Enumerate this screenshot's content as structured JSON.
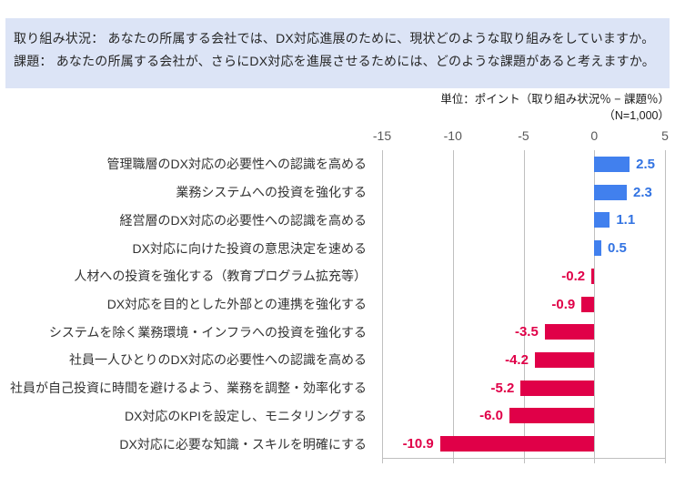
{
  "header": {
    "line1": "取り組み状況： あなたの所属する会社では、DX対応進展のために、現状どのような取り組みをしていますか。",
    "line2": "課題： あなたの所属する会社が、さらにDX対応を進展させるためには、どのような課題があると考えますか。"
  },
  "chart_data": {
    "type": "bar",
    "orientation": "horizontal",
    "title": "",
    "unit_label": "単位：ポイント（取り組み状況％ − 課題％）",
    "n_label": "（N=1,000）",
    "categories": [
      "管理職層のDX対応の必要性への認識を高める",
      "業務システムへの投資を強化する",
      "経営層のDX対応の必要性への認識を高める",
      "DX対応に向けた投資の意思決定を速める",
      "人材への投資を強化する（教育プログラム拡充等）",
      "DX対応を目的とした外部との連携を強化する",
      "システムを除く業務環境・インフラへの投資を強化する",
      "社員一人ひとりのDX対応の必要性への認識を高める",
      "社員が自己投資に時間を避けるよう、業務を調整・効率化する",
      "DX対応のKPIを設定し、モニタリングする",
      "DX対応に必要な知識・スキルを明確にする"
    ],
    "values": [
      2.5,
      2.3,
      1.1,
      0.5,
      -0.2,
      -0.9,
      -3.5,
      -4.2,
      -5.2,
      -6.0,
      -10.9
    ],
    "value_labels": [
      "2.5",
      "2.3",
      "1.1",
      "0.5",
      "-0.2",
      "-0.9",
      "-3.5",
      "-4.2",
      "-5.2",
      "-6.0",
      "-10.9"
    ],
    "xlim": [
      -15,
      5
    ],
    "ticks": [
      -15,
      -10,
      -5,
      0,
      5
    ],
    "xlabel": "",
    "ylabel": "",
    "grid": true,
    "legend": false,
    "colors": {
      "positive_bar": "#4180EE",
      "negative_bar": "#E00048",
      "positive_value_text": "#3273E2",
      "negative_value_text": "#E00048",
      "gridline": "#BFBFBF",
      "axis_line": "#BFBFBF",
      "tick_text": "#595959",
      "header_bg": "#DCE4F6"
    }
  }
}
